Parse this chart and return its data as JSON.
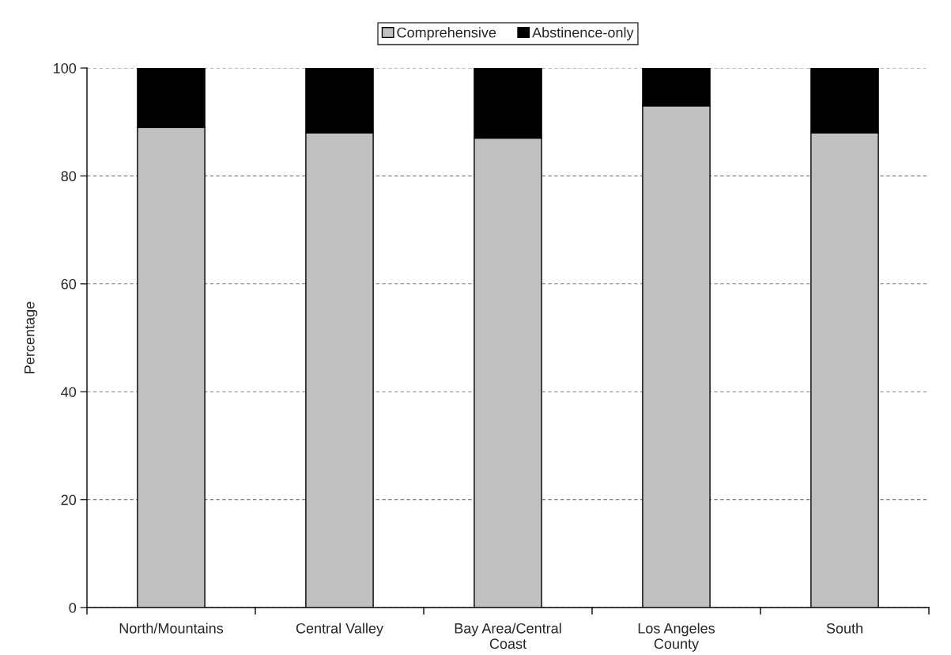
{
  "chart_data": {
    "type": "bar",
    "stacked": true,
    "ylabel": "Percentage",
    "categories": [
      "North/Mountains",
      "Central Valley",
      "Bay Area/Central\nCoast",
      "Los Angeles\nCounty",
      "South"
    ],
    "series": [
      {
        "name": "Comprehensive",
        "color": "#c0c0c0",
        "values": [
          89,
          88,
          87,
          93,
          88
        ]
      },
      {
        "name": "Abstinence-only",
        "color": "#000000",
        "values": [
          11,
          12,
          13,
          7,
          12
        ]
      }
    ],
    "ylim": [
      0,
      100
    ],
    "yticks": [
      0,
      20,
      40,
      60,
      80,
      100
    ],
    "grid": "y",
    "legend": "top"
  }
}
